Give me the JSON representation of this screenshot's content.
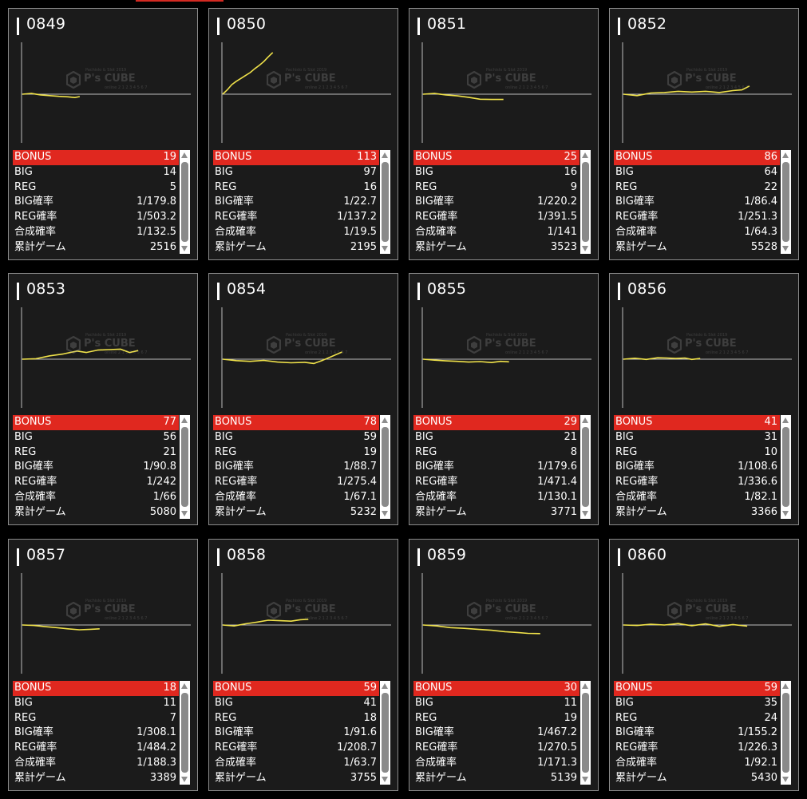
{
  "labels": {
    "bonus": "BONUS",
    "big": "BIG",
    "reg": "REG",
    "big_prob": "BIG確率",
    "reg_prob": "REG確率",
    "total_prob": "合成確率",
    "games": "累計ゲーム"
  },
  "watermark": {
    "brand": "P's CUBE",
    "line_top": "Pachislo & Slot 2019",
    "line_bottom": "online 2 1 2 3 4 5 6 7"
  },
  "colors": {
    "accent_red": "#e0281f",
    "line_yellow": "#f0e24a",
    "panel_bg": "#1b1b1b"
  },
  "icons": {
    "scroll_up": "triangle-up-icon",
    "scroll_down": "triangle-down-icon",
    "logo": "cube-logo-icon"
  },
  "machines": [
    {
      "id": "0849",
      "bonus": "19",
      "big": "14",
      "reg": "5",
      "big_prob": "1/179.8",
      "reg_prob": "1/503.2",
      "total_prob": "1/132.5",
      "games": "2516"
    },
    {
      "id": "0850",
      "bonus": "113",
      "big": "97",
      "reg": "16",
      "big_prob": "1/22.7",
      "reg_prob": "1/137.2",
      "total_prob": "1/19.5",
      "games": "2195"
    },
    {
      "id": "0851",
      "bonus": "25",
      "big": "16",
      "reg": "9",
      "big_prob": "1/220.2",
      "reg_prob": "1/391.5",
      "total_prob": "1/141",
      "games": "3523"
    },
    {
      "id": "0852",
      "bonus": "86",
      "big": "64",
      "reg": "22",
      "big_prob": "1/86.4",
      "reg_prob": "1/251.3",
      "total_prob": "1/64.3",
      "games": "5528"
    },
    {
      "id": "0853",
      "bonus": "77",
      "big": "56",
      "reg": "21",
      "big_prob": "1/90.8",
      "reg_prob": "1/242",
      "total_prob": "1/66",
      "games": "5080"
    },
    {
      "id": "0854",
      "bonus": "78",
      "big": "59",
      "reg": "19",
      "big_prob": "1/88.7",
      "reg_prob": "1/275.4",
      "total_prob": "1/67.1",
      "games": "5232"
    },
    {
      "id": "0855",
      "bonus": "29",
      "big": "21",
      "reg": "8",
      "big_prob": "1/179.6",
      "reg_prob": "1/471.4",
      "total_prob": "1/130.1",
      "games": "3771"
    },
    {
      "id": "0856",
      "bonus": "41",
      "big": "31",
      "reg": "10",
      "big_prob": "1/108.6",
      "reg_prob": "1/336.6",
      "total_prob": "1/82.1",
      "games": "3366"
    },
    {
      "id": "0857",
      "bonus": "18",
      "big": "11",
      "reg": "7",
      "big_prob": "1/308.1",
      "reg_prob": "1/484.2",
      "total_prob": "1/188.3",
      "games": "3389"
    },
    {
      "id": "0858",
      "bonus": "59",
      "big": "41",
      "reg": "18",
      "big_prob": "1/91.6",
      "reg_prob": "1/208.7",
      "total_prob": "1/63.7",
      "games": "3755"
    },
    {
      "id": "0859",
      "bonus": "30",
      "big": "11",
      "reg": "19",
      "big_prob": "1/467.2",
      "reg_prob": "1/270.5",
      "total_prob": "1/171.3",
      "games": "5139"
    },
    {
      "id": "0860",
      "bonus": "59",
      "big": "35",
      "reg": "24",
      "big_prob": "1/155.2",
      "reg_prob": "1/226.3",
      "total_prob": "1/92.1",
      "games": "5430"
    }
  ],
  "chart_data": [
    {
      "type": "line",
      "machine": "0849",
      "games": 2516,
      "x": [
        0,
        400,
        800,
        1200,
        1600,
        2000,
        2300,
        2516
      ],
      "y": [
        0,
        150,
        -150,
        -300,
        -450,
        -550,
        -700,
        -500
      ]
    },
    {
      "type": "line",
      "machine": "0850",
      "games": 2195,
      "x": [
        0,
        200,
        400,
        600,
        800,
        1000,
        1200,
        1400,
        1600,
        1800,
        2000,
        2195
      ],
      "y": [
        0,
        900,
        2000,
        2700,
        3300,
        3900,
        4500,
        5300,
        6000,
        6800,
        7800,
        8700
      ]
    },
    {
      "type": "line",
      "machine": "0851",
      "games": 3523,
      "x": [
        0,
        500,
        1000,
        1500,
        2000,
        2500,
        3000,
        3523
      ],
      "y": [
        0,
        150,
        -150,
        -350,
        -650,
        -1050,
        -1100,
        -1100
      ]
    },
    {
      "type": "line",
      "machine": "0852",
      "games": 5528,
      "x": [
        0,
        600,
        1200,
        1800,
        2400,
        3000,
        3600,
        4200,
        4800,
        5200,
        5528
      ],
      "y": [
        0,
        -300,
        250,
        350,
        600,
        450,
        600,
        350,
        750,
        900,
        1700
      ]
    },
    {
      "type": "line",
      "machine": "0853",
      "games": 5080,
      "x": [
        0,
        600,
        1200,
        1800,
        2400,
        2800,
        3300,
        3800,
        4300,
        4700,
        5080
      ],
      "y": [
        0,
        100,
        700,
        1100,
        1700,
        1400,
        1900,
        2000,
        2100,
        1400,
        1800
      ]
    },
    {
      "type": "line",
      "machine": "0854",
      "games": 5232,
      "x": [
        0,
        600,
        1200,
        1800,
        2400,
        3000,
        3600,
        4000,
        4400,
        4800,
        5232
      ],
      "y": [
        0,
        -300,
        -450,
        -250,
        -600,
        -750,
        -650,
        -900,
        -200,
        600,
        1500
      ]
    },
    {
      "type": "line",
      "machine": "0855",
      "games": 3771,
      "x": [
        0,
        500,
        1000,
        1500,
        2000,
        2500,
        3000,
        3400,
        3771
      ],
      "y": [
        0,
        -200,
        -350,
        -450,
        -600,
        -500,
        -700,
        -450,
        -550
      ]
    },
    {
      "type": "line",
      "machine": "0856",
      "games": 3366,
      "x": [
        0,
        500,
        1000,
        1500,
        1900,
        2300,
        2700,
        3000,
        3366
      ],
      "y": [
        0,
        200,
        -50,
        300,
        250,
        150,
        250,
        -50,
        150
      ]
    },
    {
      "type": "line",
      "machine": "0857",
      "games": 3389,
      "x": [
        0,
        500,
        1000,
        1500,
        2000,
        2500,
        3000,
        3389
      ],
      "y": [
        0,
        -100,
        -350,
        -550,
        -800,
        -1000,
        -900,
        -800
      ]
    },
    {
      "type": "line",
      "machine": "0858",
      "games": 3755,
      "x": [
        0,
        500,
        1000,
        1500,
        2000,
        2500,
        3000,
        3400,
        3755
      ],
      "y": [
        0,
        -200,
        250,
        600,
        1000,
        900,
        800,
        1100,
        1200
      ]
    },
    {
      "type": "line",
      "machine": "0859",
      "games": 5139,
      "x": [
        0,
        600,
        1200,
        1800,
        2400,
        3000,
        3600,
        4200,
        4600,
        5139
      ],
      "y": [
        0,
        -200,
        -550,
        -700,
        -900,
        -1100,
        -1400,
        -1600,
        -1750,
        -1800
      ]
    },
    {
      "type": "line",
      "machine": "0860",
      "games": 5430,
      "x": [
        0,
        600,
        1200,
        1800,
        2400,
        3000,
        3600,
        4200,
        4800,
        5430
      ],
      "y": [
        0,
        -100,
        150,
        0,
        300,
        -150,
        250,
        -300,
        100,
        -250
      ]
    }
  ]
}
